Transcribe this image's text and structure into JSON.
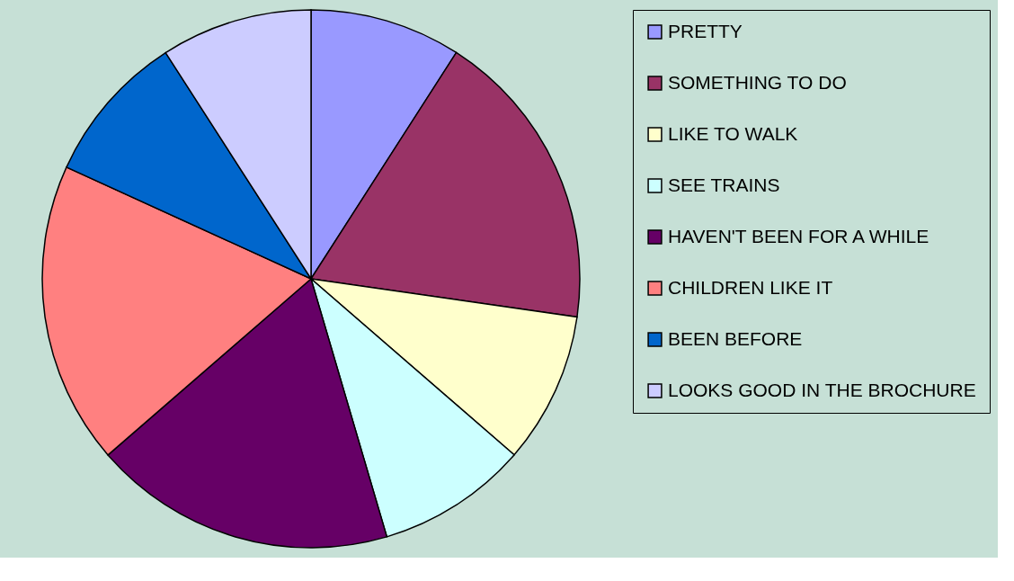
{
  "chart_data": {
    "type": "pie",
    "categories": [
      "PRETTY",
      "SOMETHING TO DO",
      "LIKE TO WALK",
      "SEE TRAINS",
      "HAVEN'T BEEN FOR A WHILE",
      "CHILDREN LIKE IT",
      "BEEN BEFORE",
      "LOOKS GOOD IN THE BROCHURE"
    ],
    "values": [
      9.09,
      18.18,
      9.09,
      9.09,
      18.18,
      18.18,
      9.09,
      9.1
    ],
    "colors": [
      "#9999ff",
      "#993366",
      "#ffffcc",
      "#ccffff",
      "#660066",
      "#ff8080",
      "#0066cc",
      "#ccccff"
    ],
    "legend": "right"
  }
}
